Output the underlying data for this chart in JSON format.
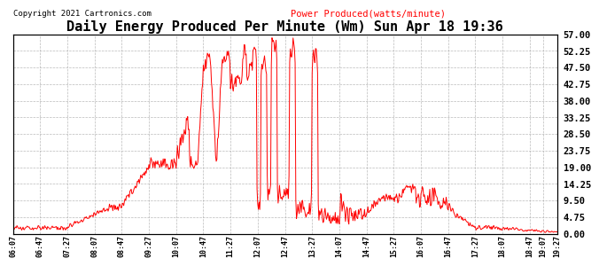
{
  "title": "Daily Energy Produced Per Minute (Wm) Sun Apr 18 19:36",
  "copyright": "Copyright 2021 Cartronics.com",
  "legend_label": "Power Produced(watts/minute)",
  "ylabel_right_ticks": [
    0.0,
    4.75,
    9.5,
    14.25,
    19.0,
    23.75,
    28.5,
    33.25,
    38.0,
    42.75,
    47.5,
    52.25,
    57.0
  ],
  "ymin": 0.0,
  "ymax": 57.0,
  "line_color": "red",
  "grid_color": "#aaaaaa",
  "background_color": "#ffffff",
  "title_fontsize": 11,
  "tick_label_fontsize": 7.5,
  "x_tick_labels": [
    "06:07",
    "06:47",
    "07:27",
    "08:07",
    "08:47",
    "09:27",
    "10:07",
    "10:47",
    "11:27",
    "12:07",
    "12:47",
    "13:27",
    "14:07",
    "14:47",
    "15:27",
    "16:07",
    "16:47",
    "17:27",
    "18:07",
    "18:47",
    "19:07",
    "19:27"
  ]
}
